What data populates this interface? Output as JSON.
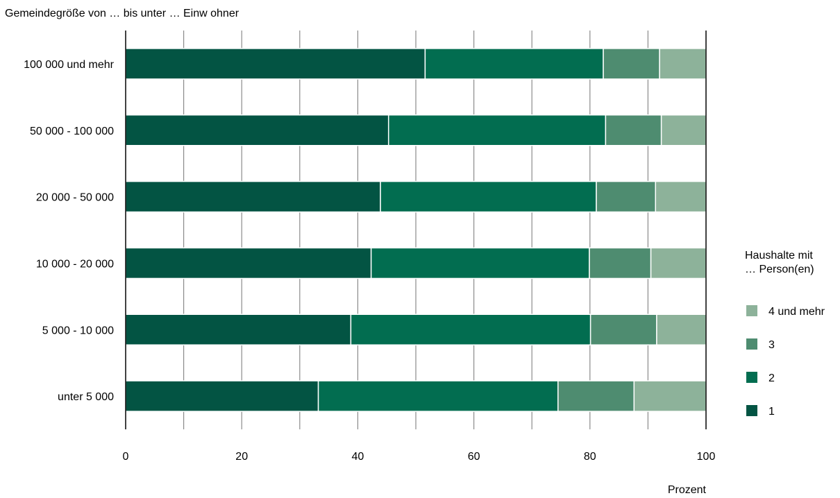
{
  "chart_data": {
    "type": "bar",
    "orientation": "horizontal",
    "stacked": true,
    "title": "Gemeindegröße von … bis unter … Einw ohner",
    "xlabel": "Prozent",
    "xlim": [
      0,
      100
    ],
    "xticks": [
      0,
      20,
      40,
      60,
      80,
      100
    ],
    "grid": true,
    "legend_title": [
      "Haushalte mit",
      "… Person(en)"
    ],
    "legend_position": "right",
    "categories": [
      "100 000 und mehr",
      "50 000 - 100 000",
      "20 000 - 50 000",
      "10 000 - 20 000",
      "5 000 - 10 000",
      "unter 5 000"
    ],
    "series": [
      {
        "name": "1",
        "color": "#035443",
        "values": [
          51.6,
          45.3,
          43.9,
          42.3,
          38.8,
          33.2
        ]
      },
      {
        "name": "2",
        "color": "#026d50",
        "values": [
          30.7,
          37.4,
          37.2,
          37.6,
          41.3,
          41.3
        ]
      },
      {
        "name": "3",
        "color": "#4e8c70",
        "values": [
          9.7,
          9.6,
          10.2,
          10.6,
          11.4,
          13.1
        ]
      },
      {
        "name": "4 und mehr",
        "color": "#8db29a",
        "values": [
          8.0,
          7.7,
          8.7,
          9.5,
          8.5,
          12.4
        ]
      }
    ],
    "legend_order": [
      3,
      2,
      1,
      0
    ]
  }
}
